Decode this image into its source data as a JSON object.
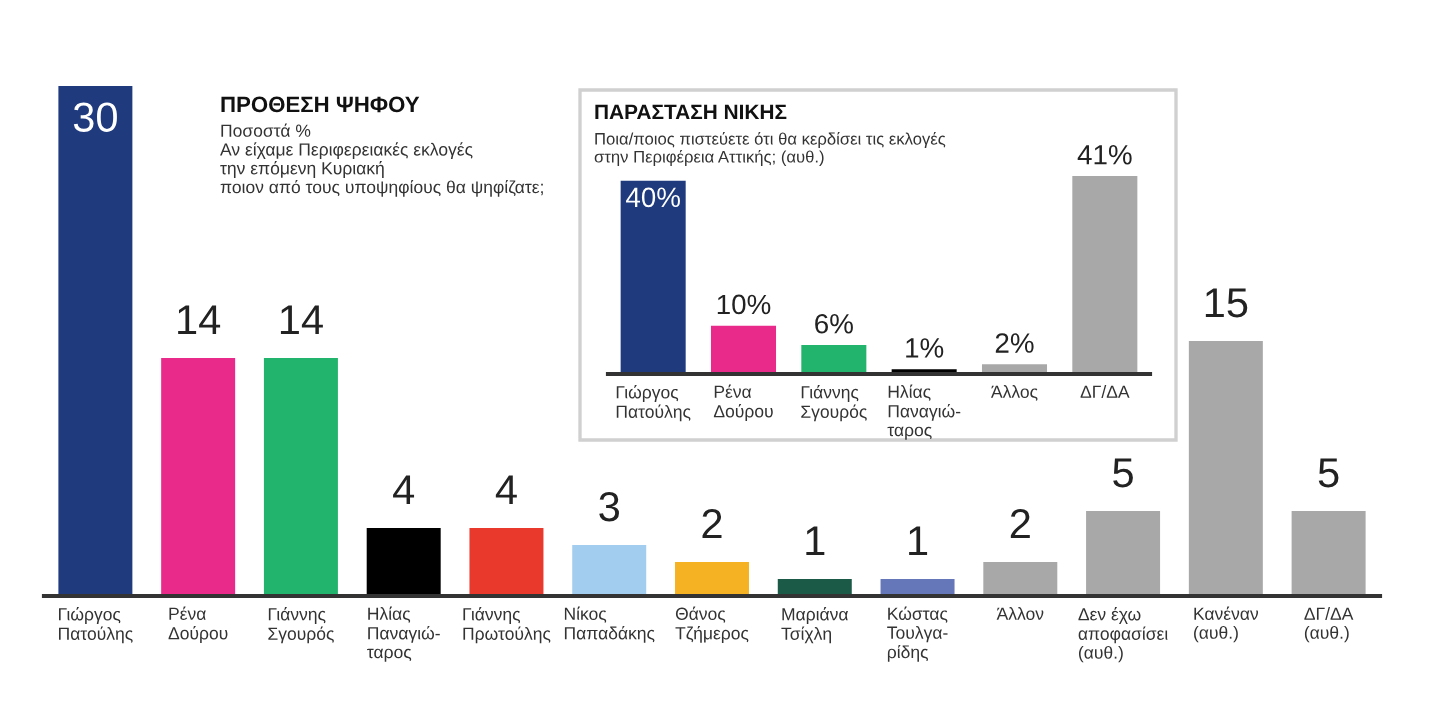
{
  "chart_data": [
    {
      "type": "bar",
      "title": "ΠΡΟΘΕΣΗ ΨΗΦΟΥ",
      "subtitle": "Ποσοστά %\nΑν είχαμε Περιφερειακές εκλογές\nτην επόμενη Κυριακή\nποιον από τους υποψηφίους θα ψηφίζατε;",
      "categories": [
        "Γιώργος\nΠατούλης",
        "Ρένα\nΔούρου",
        "Γιάννης\nΣγουρός",
        "Ηλίας\nΠαναγιώ-\nταρος",
        "Γιάννης\nΠρωτούλης",
        "Νίκος\nΠαπαδάκης",
        "Θάνος\nΤζήμερος",
        "Μαριάνα\nΤσίχλη",
        "Κώστας\nΤουλγα-\nρίδης",
        "Άλλον",
        "Δεν έχω\nαποφασίσει\n(αυθ.)",
        "Κανέναν\n(αυθ.)",
        "ΔΓ/ΔΑ\n(αυθ.)"
      ],
      "values": [
        30,
        14,
        14,
        4,
        4,
        3,
        2,
        1,
        1,
        2,
        5,
        15,
        5
      ],
      "colors": [
        "#1f3b7e",
        "#ea2a8b",
        "#22b36c",
        "#000000",
        "#e8392c",
        "#a3cdef",
        "#f5b323",
        "#1c5a48",
        "#6677b9",
        "#a8a8a8",
        "#a8a8a8",
        "#a8a8a8",
        "#a8a8a8"
      ],
      "data_labels": true
    },
    {
      "type": "bar",
      "title": "ΠΑΡΑΣΤΑΣΗ ΝΙΚΗΣ",
      "subtitle": "Ποια/ποιος πιστεύετε ότι θα κερδίσει τις εκλογές\nστην Περιφέρεια Αττικής; (αυθ.)",
      "categories": [
        "Γιώργος\nΠατούλης",
        "Ρένα\nΔούρου",
        "Γιάννης\nΣγουρός",
        "Ηλίας\nΠαναγιώ-\nταρος",
        "Άλλος",
        "ΔΓ/ΔΑ"
      ],
      "values": [
        40,
        10,
        6,
        1,
        2,
        41
      ],
      "value_labels": [
        "40%",
        "10%",
        "6%",
        "1%",
        "2%",
        "41%"
      ],
      "colors": [
        "#1f3b7e",
        "#ea2a8b",
        "#22b36c",
        "#000000",
        "#a8a8a8",
        "#a8a8a8"
      ]
    }
  ]
}
